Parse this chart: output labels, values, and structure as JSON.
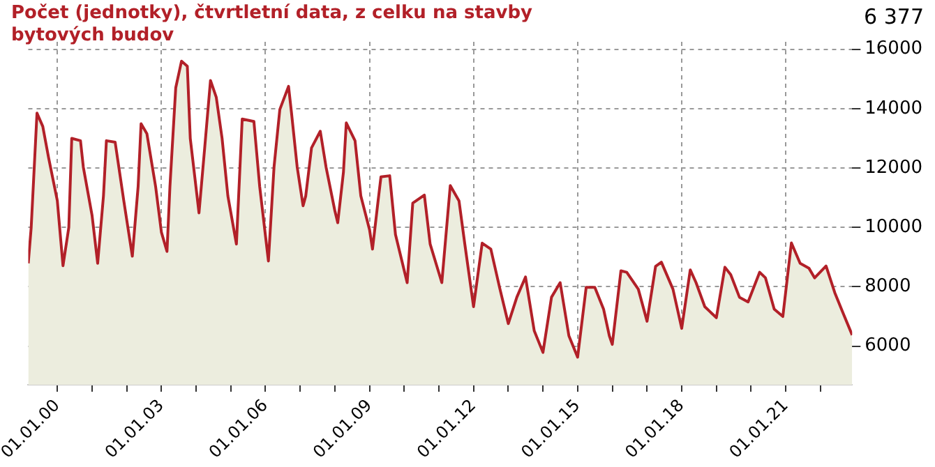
{
  "chart_data": {
    "type": "area",
    "title": "Počet (jednotky), čtvrtletní data, z celku na stavby bytových budov",
    "annotations": [
      "6 377"
    ],
    "x": [
      "1999-03",
      "1999-04",
      "1999-06",
      "1999-08",
      "1999-10",
      "2000-01",
      "2000-02",
      "2000-03",
      "2000-05",
      "2000-06",
      "2000-09",
      "2000-10",
      "2001-01",
      "2001-03",
      "2001-05",
      "2001-06",
      "2001-09",
      "2001-12",
      "2002-03",
      "2002-05",
      "2002-06",
      "2002-08",
      "2002-11",
      "2003-01",
      "2003-03",
      "2003-04",
      "2003-06",
      "2003-08",
      "2003-10",
      "2003-11",
      "2004-02",
      "2004-04",
      "2004-06",
      "2004-08",
      "2004-10",
      "2004-12",
      "2005-03",
      "2005-05",
      "2005-09",
      "2005-11",
      "2006-02",
      "2006-04",
      "2006-06",
      "2006-09",
      "2006-10",
      "2006-12",
      "2007-02",
      "2007-03",
      "2007-05",
      "2007-08",
      "2007-10",
      "2008-01",
      "2008-02",
      "2008-04",
      "2008-05",
      "2008-08",
      "2008-10",
      "2009-01",
      "2009-02",
      "2009-04",
      "2009-05",
      "2009-08",
      "2009-10",
      "2010-02",
      "2010-04",
      "2010-08",
      "2010-10",
      "2011-02",
      "2011-05",
      "2011-08",
      "2011-10",
      "2012-01",
      "2012-04",
      "2012-07",
      "2012-10",
      "2013-01",
      "2013-04",
      "2013-07",
      "2013-10",
      "2014-01",
      "2014-04",
      "2014-07",
      "2014-10",
      "2015-01",
      "2015-04",
      "2015-07",
      "2015-10",
      "2015-12",
      "2016-01",
      "2016-04",
      "2016-06",
      "2016-10",
      "2017-01",
      "2017-04",
      "2017-06",
      "2017-10",
      "2018-01",
      "2018-04",
      "2018-06",
      "2018-09",
      "2019-01",
      "2019-04",
      "2019-06",
      "2019-09",
      "2019-12",
      "2020-04",
      "2020-06",
      "2020-09",
      "2020-12",
      "2021-03",
      "2021-06",
      "2021-09",
      "2021-11",
      "2022-03",
      "2022-06",
      "2022-09",
      "2022-12"
    ],
    "series": [
      {
        "color": "#b22028",
        "values": [
          8790,
          10000,
          13850,
          13400,
          12350,
          10900,
          9760,
          8710,
          10000,
          13000,
          12920,
          12030,
          10400,
          8790,
          11060,
          12920,
          12870,
          10900,
          9030,
          11380,
          13490,
          13160,
          11380,
          9840,
          9190,
          11380,
          14700,
          15600,
          15430,
          13000,
          10490,
          12680,
          14950,
          14380,
          13000,
          11060,
          9440,
          13650,
          13570,
          11380,
          8870,
          12030,
          13970,
          14750,
          13890,
          12030,
          10730,
          11060,
          12680,
          13240,
          12030,
          10570,
          10160,
          11860,
          13520,
          12920,
          11060,
          9920,
          9270,
          10900,
          11700,
          11740,
          9760,
          8140,
          10820,
          11090,
          9440,
          8140,
          11410,
          10890,
          9440,
          7330,
          9470,
          9270,
          7980,
          6760,
          7650,
          8330,
          6520,
          5790,
          7650,
          8140,
          6350,
          5630,
          7980,
          7980,
          7250,
          6350,
          6060,
          8540,
          8490,
          7920,
          6840,
          8690,
          8830,
          7920,
          6600,
          8570,
          8140,
          7330,
          6960,
          8660,
          8410,
          7650,
          7490,
          8490,
          8300,
          7250,
          7000,
          9480,
          8790,
          8630,
          8300,
          8700,
          7800,
          7080,
          6377
        ]
      }
    ],
    "xlim": [
      "1999-03",
      "2022-12"
    ],
    "xticks": [
      {
        "value": "2000-01-01",
        "label": "01.01.00"
      },
      {
        "value": "2001-01-01",
        "label": null
      },
      {
        "value": "2002-01-01",
        "label": null
      },
      {
        "value": "2003-01-01",
        "label": "01.01.03"
      },
      {
        "value": "2004-01-01",
        "label": null
      },
      {
        "value": "2005-01-01",
        "label": null
      },
      {
        "value": "2006-01-01",
        "label": "01.01.06"
      },
      {
        "value": "2007-01-01",
        "label": null
      },
      {
        "value": "2008-01-01",
        "label": null
      },
      {
        "value": "2009-01-01",
        "label": "01.01.09"
      },
      {
        "value": "2010-01-01",
        "label": null
      },
      {
        "value": "2011-01-01",
        "label": null
      },
      {
        "value": "2012-01-01",
        "label": "01.01.12"
      },
      {
        "value": "2013-01-01",
        "label": null
      },
      {
        "value": "2014-01-01",
        "label": null
      },
      {
        "value": "2015-01-01",
        "label": "01.01.15"
      },
      {
        "value": "2016-01-01",
        "label": null
      },
      {
        "value": "2017-01-01",
        "label": null
      },
      {
        "value": "2018-01-01",
        "label": "01.01.18"
      },
      {
        "value": "2019-01-01",
        "label": null
      },
      {
        "value": "2020-01-01",
        "label": null
      },
      {
        "value": "2021-01-01",
        "label": "01.01.21"
      },
      {
        "value": "2022-01-01",
        "label": null
      }
    ],
    "ylim": [
      4700,
      16250
    ],
    "yticks": [
      6000,
      8000,
      10000,
      12000,
      14000,
      16000
    ],
    "grid": true,
    "legend": false
  }
}
